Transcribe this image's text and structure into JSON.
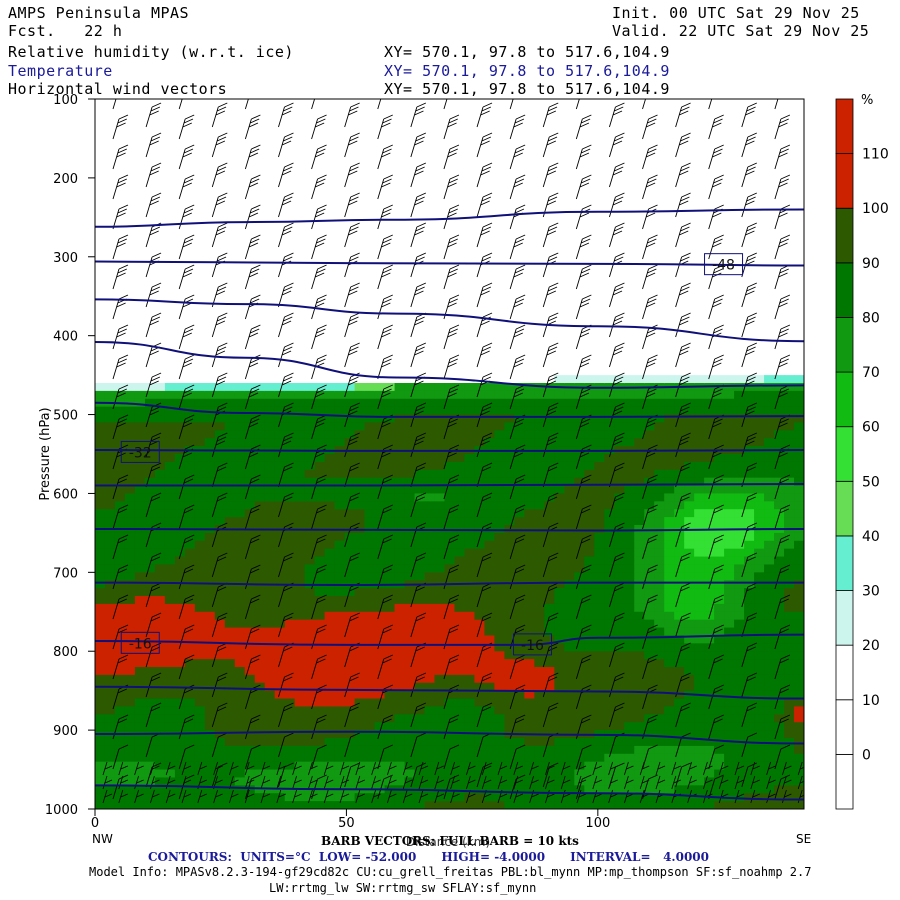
{
  "header": {
    "title": "AMPS Peninsula MPAS",
    "fcst": "Fcst.   22 h",
    "init": "Init. 00 UTC Sat 29 Nov 25",
    "valid": "Valid. 22 UTC Sat 29 Nov 25",
    "fields": [
      {
        "label": "Relative humidity (w.r.t. ice)",
        "xy": "XY= 570.1, 97.8 to 517.6,104.9"
      },
      {
        "label": "Temperature",
        "xy": "XY= 570.1, 97.8 to 517.6,104.9"
      },
      {
        "label": "Horizontal wind vectors",
        "xy": "XY= 570.1, 97.8 to 517.6,104.9"
      }
    ]
  },
  "chart_data": {
    "type": "heatmap",
    "ylabel": "Pressure (hPa)",
    "xlabel": "Distance (km)",
    "y_ticks": [
      100,
      200,
      300,
      400,
      500,
      600,
      700,
      800,
      900,
      1000
    ],
    "x_ticks": [
      0,
      50,
      100
    ],
    "xlim": [
      0,
      141
    ],
    "ylim": [
      1000,
      100
    ],
    "x_end_labels": {
      "left": "NW",
      "right": "SE"
    },
    "colorbar": {
      "unit": "%",
      "ticks": [
        0,
        10,
        20,
        30,
        40,
        50,
        60,
        70,
        80,
        90,
        100,
        110
      ],
      "colors": [
        "#ffffff",
        "#ffffff",
        "#ffffff",
        "#ccf5ee",
        "#66eed0",
        "#66dd55",
        "#33e033",
        "#11bb11",
        "#119911",
        "#007700",
        "#2d5a00",
        "#cc2200"
      ]
    },
    "contour_labels": [
      {
        "text": "-48",
        "x": 125,
        "p": 310
      },
      {
        "text": "-32",
        "x": 9,
        "p": 548
      },
      {
        "text": "-16",
        "x": 9,
        "p": 790
      },
      {
        "text": "-16",
        "x": 87,
        "p": 792
      }
    ],
    "isotherms": [
      {
        "x": [
          0,
          30,
          60,
          100,
          141
        ],
        "p": [
          262,
          256,
          253,
          243,
          240
        ]
      },
      {
        "x": [
          0,
          50,
          100,
          141
        ],
        "p": [
          306,
          308,
          309,
          311
        ]
      },
      {
        "x": [
          0,
          30,
          60,
          100,
          141
        ],
        "p": [
          354,
          360,
          372,
          388,
          407
        ]
      },
      {
        "x": [
          0,
          30,
          60,
          100,
          141
        ],
        "p": [
          408,
          428,
          453,
          466,
          463
        ]
      },
      {
        "x": [
          0,
          30,
          60,
          100,
          141
        ],
        "p": [
          485,
          498,
          503,
          503,
          502
        ]
      },
      {
        "x": [
          0,
          50,
          100,
          141
        ],
        "p": [
          545,
          546,
          546,
          545
        ]
      },
      {
        "x": [
          0,
          50,
          100,
          141
        ],
        "p": [
          590,
          590,
          589,
          588
        ]
      },
      {
        "x": [
          0,
          50,
          100,
          141
        ],
        "p": [
          645,
          646,
          647,
          645
        ]
      },
      {
        "x": [
          0,
          50,
          100,
          141
        ],
        "p": [
          713,
          716,
          713,
          713
        ]
      },
      {
        "x": [
          0,
          50,
          85,
          100,
          141
        ],
        "p": [
          787,
          792,
          792,
          783,
          779
        ]
      },
      {
        "x": [
          0,
          50,
          100,
          141
        ],
        "p": [
          845,
          849,
          851,
          860
        ]
      },
      {
        "x": [
          0,
          50,
          100,
          141
        ],
        "p": [
          905,
          902,
          906,
          917
        ]
      },
      {
        "x": [
          0,
          50,
          100,
          141
        ],
        "p": [
          970,
          975,
          980,
          988
        ]
      }
    ]
  },
  "footer": {
    "barb_note": "BARB VECTORS: FULL BARB = 10 kts",
    "contours": "CONTOURS:  UNITS=°C  LOW= -52.000      HIGH= -4.0000      INTERVAL=   4.0000",
    "model_info": "Model Info: MPASv8.2.3-194-gf29cd82c CU:cu_grell_freitas PBL:bl_mynn MP:mp_thompson SF:sf_noahmp 2.7",
    "model_info2": "LW:rrtmg_lw SW:rrtmg_sw SFLAY:sf_mynn"
  },
  "colors": {
    "contour": "#10107a",
    "axis": "#000000",
    "barb": "#000000"
  }
}
